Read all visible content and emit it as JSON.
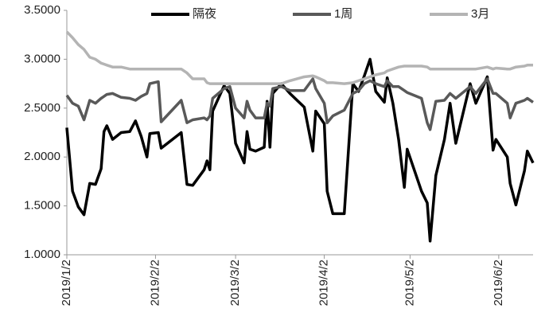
{
  "chart_data": {
    "type": "line",
    "x": [
      "2019/1/2",
      "2019/1/4",
      "2019/1/6",
      "2019/1/8",
      "2019/1/10",
      "2019/1/12",
      "2019/1/14",
      "2019/1/15",
      "2019/1/16",
      "2019/1/18",
      "2019/1/21",
      "2019/1/24",
      "2019/1/26",
      "2019/1/28",
      "2019/1/30",
      "2019/1/31",
      "2019/2/3",
      "2019/2/4",
      "2019/2/11",
      "2019/2/13",
      "2019/2/15",
      "2019/2/19",
      "2019/2/20",
      "2019/2/21",
      "2019/2/22",
      "2019/2/26",
      "2019/2/28",
      "2019/3/2",
      "2019/3/5",
      "2019/3/6",
      "2019/3/7",
      "2019/3/9",
      "2019/3/12",
      "2019/3/13",
      "2019/3/14",
      "2019/3/15",
      "2019/3/18",
      "2019/3/21",
      "2019/3/26",
      "2019/3/29",
      "2019/3/30",
      "2019/4/2",
      "2019/4/3",
      "2019/4/5",
      "2019/4/9",
      "2019/4/12",
      "2019/4/14",
      "2019/4/16",
      "2019/4/18",
      "2019/4/20",
      "2019/4/23",
      "2019/4/24",
      "2019/4/26",
      "2019/4/28",
      "2019/4/30",
      "2019/5/1",
      "2019/5/6",
      "2019/5/8",
      "2019/5/9",
      "2019/5/11",
      "2019/5/14",
      "2019/5/16",
      "2019/5/18",
      "2019/5/23",
      "2019/5/25",
      "2019/5/29",
      "2019/5/31",
      "2019/6/1",
      "2019/6/5",
      "2019/6/6",
      "2019/6/8",
      "2019/6/11",
      "2019/6/12",
      "2019/6/14"
    ],
    "series": [
      {
        "name": "隔夜",
        "color": "#000000",
        "values": [
          2.3,
          1.65,
          1.49,
          1.41,
          1.73,
          1.72,
          1.88,
          2.26,
          2.32,
          2.18,
          2.25,
          2.26,
          2.37,
          2.21,
          2.0,
          2.24,
          2.25,
          2.09,
          2.25,
          1.72,
          1.71,
          1.87,
          1.96,
          1.87,
          2.47,
          2.73,
          2.65,
          2.14,
          1.94,
          2.26,
          2.08,
          2.06,
          2.1,
          2.57,
          2.1,
          2.65,
          2.75,
          2.65,
          2.51,
          2.06,
          2.47,
          2.34,
          1.65,
          1.42,
          1.42,
          2.75,
          2.67,
          2.83,
          3.0,
          2.67,
          2.56,
          2.81,
          2.55,
          2.18,
          1.69,
          2.08,
          1.65,
          1.53,
          1.14,
          1.81,
          2.18,
          2.55,
          2.14,
          2.75,
          2.55,
          2.82,
          2.07,
          2.18,
          2.0,
          1.73,
          1.51,
          1.86,
          2.06,
          1.94
        ]
      },
      {
        "name": "1周",
        "color": "#595959",
        "values": [
          2.63,
          2.55,
          2.52,
          2.38,
          2.58,
          2.55,
          2.6,
          2.62,
          2.64,
          2.65,
          2.61,
          2.6,
          2.58,
          2.62,
          2.65,
          2.75,
          2.77,
          2.36,
          2.58,
          2.35,
          2.38,
          2.4,
          2.38,
          2.42,
          2.6,
          2.7,
          2.72,
          2.5,
          2.4,
          2.57,
          2.48,
          2.4,
          2.4,
          2.55,
          2.52,
          2.7,
          2.72,
          2.68,
          2.68,
          2.8,
          2.7,
          2.55,
          2.35,
          2.42,
          2.48,
          2.65,
          2.68,
          2.75,
          2.78,
          2.75,
          2.72,
          2.78,
          2.72,
          2.72,
          2.68,
          2.66,
          2.6,
          2.35,
          2.28,
          2.57,
          2.58,
          2.65,
          2.6,
          2.72,
          2.65,
          2.8,
          2.65,
          2.65,
          2.55,
          2.4,
          2.55,
          2.58,
          2.6,
          2.56
        ]
      },
      {
        "name": "3月",
        "color": "#b4b4b4",
        "values": [
          3.28,
          3.22,
          3.15,
          3.1,
          3.02,
          3.0,
          2.96,
          2.95,
          2.94,
          2.92,
          2.92,
          2.9,
          2.9,
          2.9,
          2.9,
          2.9,
          2.9,
          2.9,
          2.9,
          2.86,
          2.8,
          2.8,
          2.76,
          2.75,
          2.75,
          2.75,
          2.75,
          2.75,
          2.75,
          2.75,
          2.75,
          2.75,
          2.75,
          2.75,
          2.75,
          2.75,
          2.75,
          2.78,
          2.82,
          2.83,
          2.82,
          2.78,
          2.76,
          2.76,
          2.75,
          2.76,
          2.78,
          2.8,
          2.82,
          2.84,
          2.86,
          2.88,
          2.9,
          2.92,
          2.93,
          2.93,
          2.93,
          2.92,
          2.9,
          2.9,
          2.9,
          2.9,
          2.9,
          2.9,
          2.9,
          2.92,
          2.9,
          2.91,
          2.9,
          2.9,
          2.92,
          2.93,
          2.94,
          2.94
        ]
      }
    ],
    "xlim": [
      "2019/1/2",
      "2019/6/14"
    ],
    "xticks": [
      "2019/1/2",
      "2019/2/2",
      "2019/3/2",
      "2019/4/2",
      "2019/5/2",
      "2019/6/2"
    ],
    "ylim": [
      1.0,
      3.5
    ],
    "yticks": [
      {
        "value": 1.0,
        "label": "1.0000"
      },
      {
        "value": 1.5,
        "label": "1.5000"
      },
      {
        "value": 2.0,
        "label": "2.0000"
      },
      {
        "value": 2.5,
        "label": "2.5000"
      },
      {
        "value": 3.0,
        "label": "3.0000"
      },
      {
        "value": 3.5,
        "label": "3.5000"
      }
    ],
    "legend": "top",
    "grid": false
  }
}
